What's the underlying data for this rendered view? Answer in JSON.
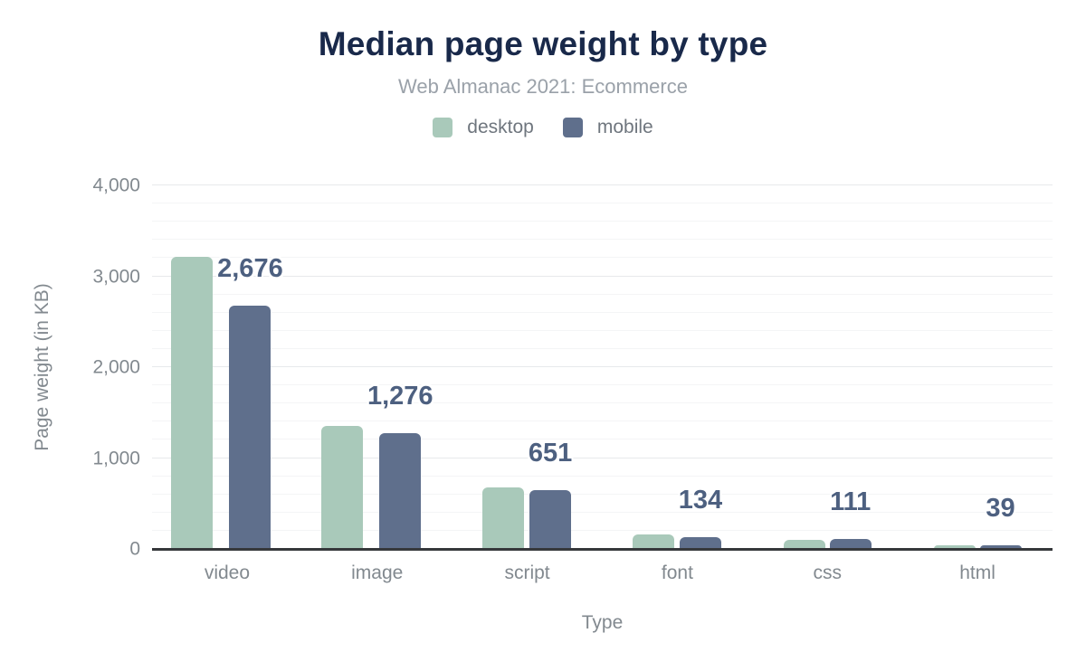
{
  "chart_data": {
    "type": "bar",
    "title": "Median page weight by type",
    "subtitle": "Web Almanac 2021: Ecommerce",
    "categories": [
      "video",
      "image",
      "script",
      "font",
      "css",
      "html"
    ],
    "series": [
      {
        "name": "desktop",
        "color": "#a9c9ba",
        "values": [
          3210,
          1350,
          678,
          158,
          104,
          44
        ]
      },
      {
        "name": "mobile",
        "color": "#5f6f8c",
        "values": [
          2676,
          1276,
          651,
          134,
          111,
          39
        ]
      }
    ],
    "data_labels": {
      "labeled_series": "mobile",
      "values": [
        "2,676",
        "1,276",
        "651",
        "134",
        "111",
        "39"
      ]
    },
    "xlabel": "Type",
    "ylabel": "Page weight (in KB)",
    "ylim": [
      0,
      4000
    ],
    "y_ticks": [
      0,
      1000,
      2000,
      3000,
      4000
    ],
    "y_tick_labels": [
      "0",
      "1,000",
      "2,000",
      "3,000",
      "4,000"
    ],
    "y_minor_step": 200,
    "grid": "horizontal",
    "legend_position": "top",
    "colors": {
      "title": "#19294a",
      "subtitle": "#9aa1a9",
      "axis_text": "#82898f",
      "data_label": "#4d6080",
      "axis_line": "#36383b",
      "gridline_major": "#e7e9eb",
      "gridline_minor": "#f4f5f6"
    }
  }
}
